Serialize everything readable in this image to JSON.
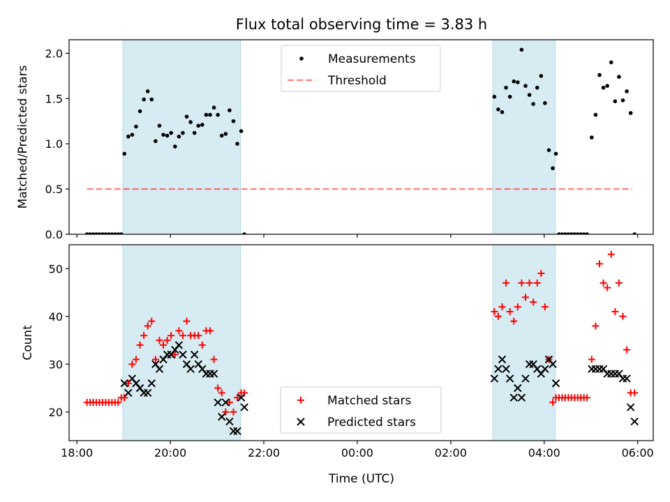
{
  "figure": {
    "title": "Flux total observing time = 3.83 h",
    "xlabel": "Time (UTC)"
  },
  "chart_data": [
    {
      "type": "scatter",
      "ylabel": "Matched/Predicted stars",
      "xlim": [
        "17:50",
        "06:20"
      ],
      "ylim": [
        0,
        2.15
      ],
      "x_ticks": [
        "18:00",
        "20:00",
        "22:00",
        "00:00",
        "02:00",
        "04:00",
        "06:00"
      ],
      "y_ticks": [
        "0.0",
        "0.5",
        "1.0",
        "1.5",
        "2.0"
      ],
      "legend_placement": "upper center",
      "shaded_intervals": [
        {
          "start": "18:59",
          "end": "21:30",
          "color": "#add8e6"
        },
        {
          "start": "02:54",
          "end": "04:14",
          "color": "#add8e6"
        }
      ],
      "threshold": {
        "name": "Threshold",
        "value": 0.5,
        "x_start": "18:13",
        "x_end": "05:53",
        "color": "#ff0000",
        "style": "dashed"
      },
      "series": [
        {
          "name": "Measurements",
          "marker": "dot",
          "color": "#000000",
          "points": [
            [
              "18:13",
              0
            ],
            [
              "18:17",
              0
            ],
            [
              "18:21",
              0
            ],
            [
              "18:25",
              0
            ],
            [
              "18:29",
              0
            ],
            [
              "18:33",
              0
            ],
            [
              "18:37",
              0
            ],
            [
              "18:41",
              0
            ],
            [
              "18:45",
              0
            ],
            [
              "18:49",
              0
            ],
            [
              "18:53",
              0
            ],
            [
              "18:57",
              0
            ],
            [
              "19:01",
              0.89
            ],
            [
              "19:06",
              1.08
            ],
            [
              "19:11",
              1.1
            ],
            [
              "19:16",
              1.19
            ],
            [
              "19:21",
              1.36
            ],
            [
              "19:26",
              1.49
            ],
            [
              "19:31",
              1.58
            ],
            [
              "19:36",
              1.49
            ],
            [
              "19:41",
              1.03
            ],
            [
              "19:46",
              1.2
            ],
            [
              "19:51",
              1.1
            ],
            [
              "19:56",
              1.09
            ],
            [
              "20:01",
              1.12
            ],
            [
              "20:06",
              0.97
            ],
            [
              "20:11",
              1.08
            ],
            [
              "20:16",
              1.12
            ],
            [
              "20:21",
              1.3
            ],
            [
              "20:26",
              1.24
            ],
            [
              "20:31",
              1.12
            ],
            [
              "20:36",
              1.2
            ],
            [
              "20:41",
              1.21
            ],
            [
              "20:46",
              1.32
            ],
            [
              "20:51",
              1.32
            ],
            [
              "20:56",
              1.4
            ],
            [
              "21:01",
              1.32
            ],
            [
              "21:06",
              1.09
            ],
            [
              "21:11",
              1.11
            ],
            [
              "21:16",
              1.37
            ],
            [
              "21:21",
              1.25
            ],
            [
              "21:26",
              1.0
            ],
            [
              "21:31",
              1.14
            ],
            [
              "21:35",
              0
            ],
            [
              "02:56",
              1.52
            ],
            [
              "03:01",
              1.38
            ],
            [
              "03:06",
              1.35
            ],
            [
              "03:11",
              1.62
            ],
            [
              "03:16",
              1.52
            ],
            [
              "03:21",
              1.69
            ],
            [
              "03:26",
              1.68
            ],
            [
              "03:31",
              2.04
            ],
            [
              "03:36",
              1.64
            ],
            [
              "03:41",
              1.54
            ],
            [
              "03:46",
              1.44
            ],
            [
              "03:51",
              1.62
            ],
            [
              "03:56",
              1.75
            ],
            [
              "04:01",
              1.45
            ],
            [
              "04:06",
              0.93
            ],
            [
              "04:11",
              0.73
            ],
            [
              "04:15",
              0.89
            ],
            [
              "04:19",
              0
            ],
            [
              "04:23",
              0
            ],
            [
              "04:27",
              0
            ],
            [
              "04:31",
              0
            ],
            [
              "04:35",
              0
            ],
            [
              "04:39",
              0
            ],
            [
              "04:43",
              0
            ],
            [
              "04:47",
              0
            ],
            [
              "04:51",
              0
            ],
            [
              "04:55",
              0
            ],
            [
              "05:01",
              1.07
            ],
            [
              "05:06",
              1.32
            ],
            [
              "05:11",
              1.76
            ],
            [
              "05:16",
              1.62
            ],
            [
              "05:21",
              1.64
            ],
            [
              "05:26",
              1.9
            ],
            [
              "05:31",
              1.47
            ],
            [
              "05:36",
              1.74
            ],
            [
              "05:41",
              1.48
            ],
            [
              "05:46",
              1.58
            ],
            [
              "05:51",
              1.34
            ],
            [
              "05:56",
              0
            ]
          ]
        }
      ]
    },
    {
      "type": "scatter",
      "ylabel": "Count",
      "xlim": [
        "17:50",
        "06:20"
      ],
      "ylim": [
        14,
        55
      ],
      "x_ticks": [
        "18:00",
        "20:00",
        "22:00",
        "00:00",
        "02:00",
        "04:00",
        "06:00"
      ],
      "y_ticks": [
        "20",
        "30",
        "40",
        "50"
      ],
      "legend_placement": "lower center",
      "shaded_intervals": [
        {
          "start": "18:59",
          "end": "21:30",
          "color": "#add8e6"
        },
        {
          "start": "02:54",
          "end": "04:14",
          "color": "#add8e6"
        }
      ],
      "series": [
        {
          "name": "Matched stars",
          "marker": "plus",
          "color": "#ff0000",
          "points": [
            [
              "18:13",
              22
            ],
            [
              "18:17",
              22
            ],
            [
              "18:21",
              22
            ],
            [
              "18:25",
              22
            ],
            [
              "18:29",
              22
            ],
            [
              "18:33",
              22
            ],
            [
              "18:37",
              22
            ],
            [
              "18:41",
              22
            ],
            [
              "18:45",
              22
            ],
            [
              "18:49",
              22
            ],
            [
              "18:53",
              22
            ],
            [
              "18:57",
              23
            ],
            [
              "19:01",
              23
            ],
            [
              "19:06",
              26
            ],
            [
              "19:11",
              30
            ],
            [
              "19:16",
              31
            ],
            [
              "19:21",
              34
            ],
            [
              "19:26",
              36
            ],
            [
              "19:31",
              38
            ],
            [
              "19:36",
              39
            ],
            [
              "19:41",
              31
            ],
            [
              "19:46",
              35
            ],
            [
              "19:51",
              34
            ],
            [
              "19:56",
              35
            ],
            [
              "20:01",
              36
            ],
            [
              "20:06",
              32
            ],
            [
              "20:11",
              37
            ],
            [
              "20:16",
              36
            ],
            [
              "20:21",
              39
            ],
            [
              "20:26",
              36
            ],
            [
              "20:31",
              36
            ],
            [
              "20:36",
              36
            ],
            [
              "20:41",
              34
            ],
            [
              "20:46",
              37
            ],
            [
              "20:51",
              37
            ],
            [
              "20:56",
              31
            ],
            [
              "21:01",
              25
            ],
            [
              "21:06",
              24
            ],
            [
              "21:11",
              20
            ],
            [
              "21:16",
              22
            ],
            [
              "21:21",
              20
            ],
            [
              "21:26",
              23
            ],
            [
              "21:31",
              24
            ],
            [
              "21:35",
              24
            ],
            [
              "02:56",
              41
            ],
            [
              "03:01",
              40
            ],
            [
              "03:06",
              42
            ],
            [
              "03:11",
              47
            ],
            [
              "03:16",
              41
            ],
            [
              "03:21",
              39
            ],
            [
              "03:26",
              42
            ],
            [
              "03:31",
              47
            ],
            [
              "03:36",
              44
            ],
            [
              "03:41",
              47
            ],
            [
              "03:46",
              43
            ],
            [
              "03:51",
              47
            ],
            [
              "03:56",
              49
            ],
            [
              "04:01",
              42
            ],
            [
              "04:06",
              31
            ],
            [
              "04:11",
              22
            ],
            [
              "04:15",
              23
            ],
            [
              "04:19",
              23
            ],
            [
              "04:23",
              23
            ],
            [
              "04:27",
              23
            ],
            [
              "04:31",
              23
            ],
            [
              "04:35",
              23
            ],
            [
              "04:39",
              23
            ],
            [
              "04:43",
              23
            ],
            [
              "04:47",
              23
            ],
            [
              "04:51",
              23
            ],
            [
              "04:55",
              23
            ],
            [
              "05:01",
              31
            ],
            [
              "05:06",
              38
            ],
            [
              "05:11",
              51
            ],
            [
              "05:16",
              47
            ],
            [
              "05:21",
              46
            ],
            [
              "05:26",
              53
            ],
            [
              "05:31",
              41
            ],
            [
              "05:36",
              47
            ],
            [
              "05:41",
              40
            ],
            [
              "05:46",
              33
            ],
            [
              "05:51",
              24
            ],
            [
              "05:56",
              24
            ]
          ]
        },
        {
          "name": "Predicted stars",
          "marker": "x",
          "color": "#000000",
          "points": [
            [
              "19:01",
              26
            ],
            [
              "19:06",
              24
            ],
            [
              "19:11",
              27
            ],
            [
              "19:16",
              26
            ],
            [
              "19:21",
              25
            ],
            [
              "19:26",
              24
            ],
            [
              "19:31",
              24
            ],
            [
              "19:36",
              26
            ],
            [
              "19:41",
              30
            ],
            [
              "19:46",
              29
            ],
            [
              "19:51",
              31
            ],
            [
              "19:56",
              32
            ],
            [
              "20:01",
              32
            ],
            [
              "20:06",
              33
            ],
            [
              "20:11",
              34
            ],
            [
              "20:16",
              32
            ],
            [
              "20:21",
              30
            ],
            [
              "20:26",
              29
            ],
            [
              "20:31",
              32
            ],
            [
              "20:36",
              30
            ],
            [
              "20:41",
              29
            ],
            [
              "20:46",
              28
            ],
            [
              "20:51",
              28
            ],
            [
              "20:56",
              28
            ],
            [
              "21:01",
              22
            ],
            [
              "21:06",
              19
            ],
            [
              "21:11",
              22
            ],
            [
              "21:16",
              18
            ],
            [
              "21:21",
              16
            ],
            [
              "21:26",
              16
            ],
            [
              "21:31",
              23
            ],
            [
              "21:35",
              21
            ],
            [
              "02:56",
              27
            ],
            [
              "03:01",
              29
            ],
            [
              "03:06",
              31
            ],
            [
              "03:11",
              29
            ],
            [
              "03:16",
              27
            ],
            [
              "03:21",
              23
            ],
            [
              "03:26",
              25
            ],
            [
              "03:31",
              23
            ],
            [
              "03:36",
              27
            ],
            [
              "03:41",
              30
            ],
            [
              "03:46",
              30
            ],
            [
              "03:51",
              29
            ],
            [
              "03:56",
              28
            ],
            [
              "04:01",
              29
            ],
            [
              "04:06",
              31
            ],
            [
              "04:11",
              30
            ],
            [
              "04:15",
              26
            ],
            [
              "05:01",
              29
            ],
            [
              "05:06",
              29
            ],
            [
              "05:11",
              29
            ],
            [
              "05:16",
              29
            ],
            [
              "05:21",
              28
            ],
            [
              "05:26",
              28
            ],
            [
              "05:31",
              28
            ],
            [
              "05:36",
              28
            ],
            [
              "05:41",
              27
            ],
            [
              "05:46",
              27
            ],
            [
              "05:51",
              21
            ],
            [
              "05:56",
              18
            ]
          ]
        }
      ]
    }
  ]
}
